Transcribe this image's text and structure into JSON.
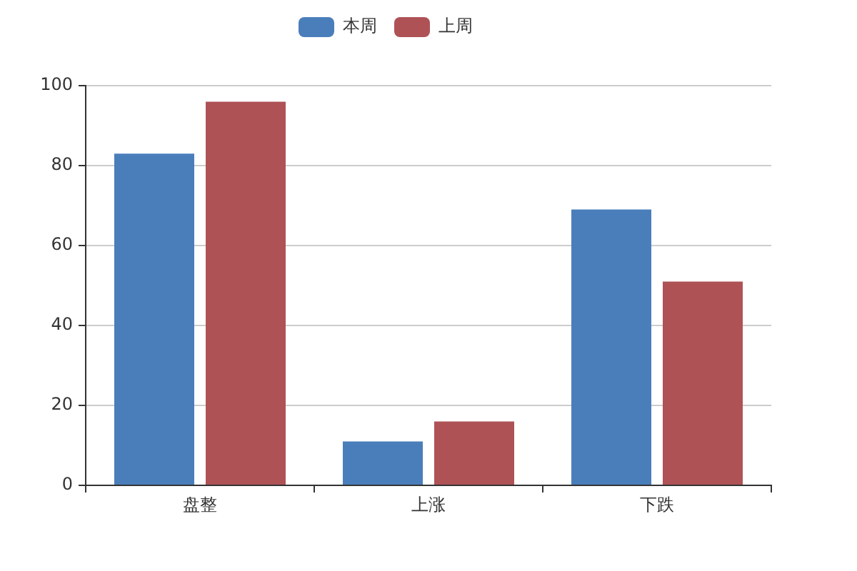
{
  "chart_data": {
    "type": "bar",
    "categories": [
      "盘整",
      "上涨",
      "下跌"
    ],
    "series": [
      {
        "name": "本周",
        "color": "#4a7ebb",
        "values": [
          83,
          11,
          69
        ]
      },
      {
        "name": "上周",
        "color": "#ae5256",
        "values": [
          96,
          16,
          51
        ]
      }
    ],
    "ylim": [
      0,
      100
    ],
    "yticks": [
      0,
      20,
      40,
      60,
      80,
      100
    ],
    "grid": "y",
    "legend": "top"
  }
}
